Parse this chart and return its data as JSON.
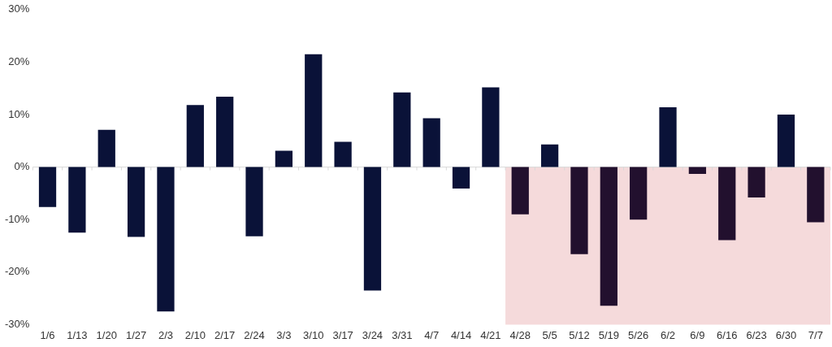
{
  "chart_data": {
    "type": "bar",
    "categories": [
      "1/6",
      "1/13",
      "1/20",
      "1/27",
      "2/3",
      "2/10",
      "2/17",
      "2/24",
      "3/3",
      "3/10",
      "3/17",
      "3/24",
      "3/31",
      "4/7",
      "4/14",
      "4/21",
      "4/28",
      "5/5",
      "5/12",
      "5/19",
      "5/26",
      "6/2",
      "6/9",
      "6/16",
      "6/23",
      "6/30",
      "7/7"
    ],
    "values": [
      -7.6,
      -12.5,
      7.1,
      -13.3,
      -27.5,
      11.8,
      13.4,
      -13.2,
      3.1,
      21.5,
      4.8,
      -23.5,
      14.2,
      9.3,
      -4.1,
      15.2,
      -9.0,
      4.3,
      -16.6,
      -26.4,
      -10.0,
      11.4,
      -1.3,
      -13.9,
      -5.8,
      10.0,
      -10.5
    ],
    "colors": [
      "#0a1238",
      "#0a1238",
      "#0a1238",
      "#0a1238",
      "#0a1238",
      "#0a1238",
      "#0a1238",
      "#0a1238",
      "#0a1238",
      "#0a1238",
      "#0a1238",
      "#0a1238",
      "#0a1238",
      "#0a1238",
      "#0a1238",
      "#0a1238",
      "#22102e",
      "#0a1238",
      "#22102e",
      "#22102e",
      "#22102e",
      "#0a1238",
      "#22102e",
      "#22102e",
      "#22102e",
      "#0a1238",
      "#22102e"
    ],
    "ylim": [
      -30,
      30
    ],
    "yticks": [
      {
        "value": -30,
        "label": "-30%"
      },
      {
        "value": -20,
        "label": "-20%"
      },
      {
        "value": -10,
        "label": "-10%"
      },
      {
        "value": 0,
        "label": "0%"
      },
      {
        "value": 10,
        "label": "10%"
      },
      {
        "value": 20,
        "label": "20%"
      },
      {
        "value": 30,
        "label": "30%"
      }
    ],
    "bands": [
      {
        "axis": "x",
        "from": "4/28",
        "to": "7/7",
        "color": "#f5dadb"
      }
    ],
    "ref_lines": [
      {
        "axis": "y",
        "value": 0,
        "color": "#d9d9d9"
      }
    ],
    "grid": false,
    "legend": false
  }
}
